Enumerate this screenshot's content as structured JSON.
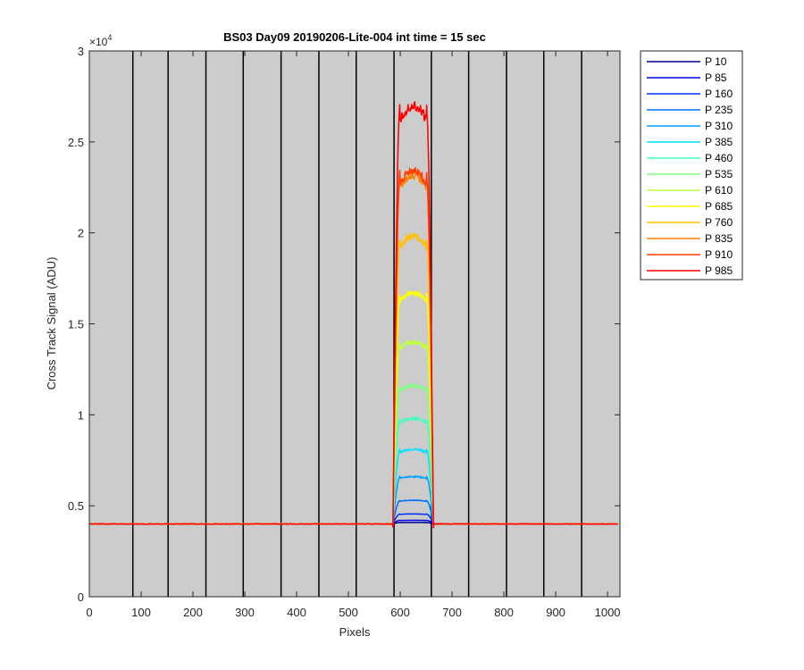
{
  "chart_data": {
    "type": "line",
    "title": "BS03 Day09 20190206-Lite-004 int time = 15 sec",
    "xlabel": "Pixels",
    "ylabel": "Cross Track Signal (ADU)",
    "y_exponent_label": "×10",
    "y_exponent_power": "4",
    "y_scale": 10000,
    "xlim": [
      0,
      1024
    ],
    "ylim": [
      0,
      30000
    ],
    "x_ticks": [
      0,
      100,
      200,
      300,
      400,
      500,
      600,
      700,
      800,
      900,
      1000
    ],
    "x_tick_labels": [
      "0",
      "100",
      "200",
      "300",
      "400",
      "500",
      "600",
      "700",
      "800",
      "900",
      "1000"
    ],
    "y_ticks": [
      0,
      5000,
      10000,
      15000,
      20000,
      25000,
      30000
    ],
    "y_tick_labels": [
      "0",
      "0.5",
      "1",
      "1.5",
      "2",
      "2.5",
      "3"
    ],
    "vertical_lines_x": [
      84,
      152,
      225,
      297,
      370,
      443,
      515,
      588,
      660,
      732,
      805,
      877,
      950
    ],
    "plot_background": "#cccccc",
    "baseline": 4000,
    "edge_start": 586,
    "rise_end": 600,
    "fall_start": 650,
    "edge_end": 664,
    "grid": false,
    "legend_position": "outside-right",
    "series": [
      {
        "name": "P 10",
        "color": "#00008f",
        "plateau": 4080
      },
      {
        "name": "P 85",
        "color": "#0000df",
        "plateau": 4200
      },
      {
        "name": "P 160",
        "color": "#0030ff",
        "plateau": 4550
      },
      {
        "name": "P 235",
        "color": "#0070ff",
        "plateau": 5300
      },
      {
        "name": "P 310",
        "color": "#00a0ff",
        "plateau": 6600
      },
      {
        "name": "P 385",
        "color": "#00e0ff",
        "plateau": 8100
      },
      {
        "name": "P 460",
        "color": "#40ffc0",
        "plateau": 9800
      },
      {
        "name": "P 535",
        "color": "#80ff80",
        "plateau": 11600
      },
      {
        "name": "P 610",
        "color": "#c0ff40",
        "plateau": 14000
      },
      {
        "name": "P 685",
        "color": "#ffff00",
        "plateau": 16700
      },
      {
        "name": "P 760",
        "color": "#ffc000",
        "plateau": 19800
      },
      {
        "name": "P 835",
        "color": "#ff8000",
        "plateau": 23200
      },
      {
        "name": "P 910",
        "color": "#ff4000",
        "plateau": 23400
      },
      {
        "name": "P 985",
        "color": "#ff0000",
        "plateau": 27000
      }
    ]
  }
}
